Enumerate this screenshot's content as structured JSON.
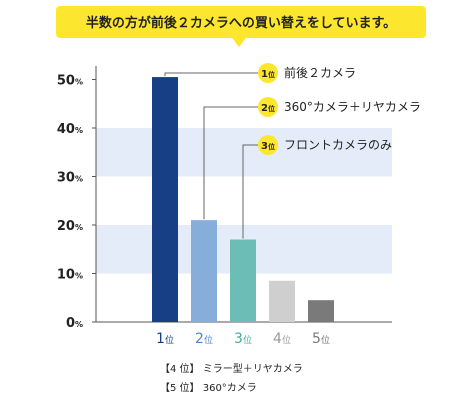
{
  "banner": {
    "text": "半数の方が前後２カメラへの買い替えをしています。",
    "color": "#fde72e"
  },
  "chart_data": {
    "type": "bar",
    "ylim": [
      0,
      55
    ],
    "yticks": [
      0,
      10,
      20,
      30,
      40,
      50
    ],
    "ytick_unit": "%",
    "bands": [
      [
        10,
        20
      ],
      [
        30,
        40
      ]
    ],
    "band_color": "#e3ecf8",
    "categories": [
      {
        "num": "1",
        "suffix": "位",
        "value": 50.5,
        "color": "#163f86",
        "label_color": "#163f86"
      },
      {
        "num": "2",
        "suffix": "位",
        "value": 21.0,
        "color": "#87aedb",
        "label_color": "#4e86c6"
      },
      {
        "num": "3",
        "suffix": "位",
        "value": 17.0,
        "color": "#6cbdb5",
        "label_color": "#45aaa0"
      },
      {
        "num": "4",
        "suffix": "位",
        "value": 8.5,
        "color": "#cfcfcf",
        "label_color": "#9a9a9a"
      },
      {
        "num": "5",
        "suffix": "位",
        "value": 4.5,
        "color": "#7a7a7a",
        "label_color": "#7a7a7a"
      }
    ],
    "callouts": [
      {
        "badge": "1",
        "badge_suffix": "位",
        "text": "前後２カメラ"
      },
      {
        "badge": "2",
        "badge_suffix": "位",
        "text": "360°カメラ＋リヤカメラ"
      },
      {
        "badge": "3",
        "badge_suffix": "位",
        "text": "フロントカメラのみ"
      }
    ],
    "badge_color": "#fde72e"
  },
  "footnotes": [
    {
      "text": "【4 位】 ミラー型＋リヤカメラ"
    },
    {
      "text": "【5 位】 360°カメラ"
    }
  ]
}
